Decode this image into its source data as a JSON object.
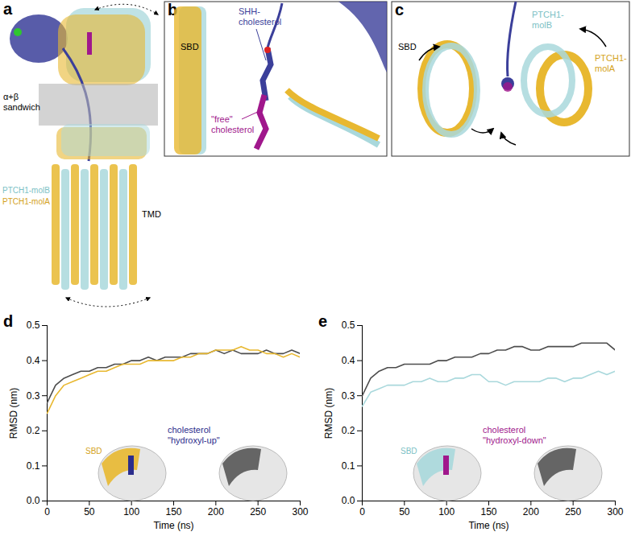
{
  "panels": [
    {
      "letter": "a",
      "sandwich_label": [
        "α+β",
        "sandwich"
      ],
      "tmd_label": "TMD",
      "molB_label": "PTCH1-molB",
      "molA_label": "PTCH1-molA",
      "molA_color": "#e8b830",
      "molB_color": "#a9d8dc",
      "shh_color": "#3b3f9a"
    },
    {
      "letter": "b",
      "shh_label": [
        "SHH-",
        "cholesterol"
      ],
      "sbd_label": "SBD",
      "free_label": [
        "\"free\"",
        "cholesterol"
      ],
      "free_color": "#a0178c"
    },
    {
      "letter": "c",
      "sbd_label": "SBD",
      "molB_label": [
        "PTCH1-",
        "molB"
      ],
      "molA_label": [
        "PTCH1-",
        "molA"
      ]
    }
  ],
  "chart_data": [
    {
      "letter": "d",
      "type": "line",
      "xlabel": "Time (ns)",
      "ylabel": "RMSD (nm)",
      "x": [
        0,
        10,
        20,
        30,
        40,
        50,
        60,
        70,
        80,
        90,
        100,
        110,
        120,
        130,
        140,
        150,
        160,
        170,
        180,
        190,
        200,
        210,
        220,
        230,
        240,
        250,
        260,
        270,
        280,
        290,
        300
      ],
      "series": [
        {
          "color": "#4d4d4d",
          "values": [
            0.28,
            0.33,
            0.35,
            0.36,
            0.37,
            0.37,
            0.38,
            0.38,
            0.39,
            0.39,
            0.4,
            0.4,
            0.41,
            0.4,
            0.41,
            0.41,
            0.41,
            0.42,
            0.42,
            0.42,
            0.43,
            0.42,
            0.43,
            0.42,
            0.42,
            0.42,
            0.43,
            0.42,
            0.42,
            0.43,
            0.42
          ]
        },
        {
          "color": "#e8b830",
          "values": [
            0.25,
            0.3,
            0.33,
            0.34,
            0.35,
            0.36,
            0.37,
            0.37,
            0.38,
            0.39,
            0.39,
            0.39,
            0.4,
            0.4,
            0.4,
            0.4,
            0.41,
            0.41,
            0.42,
            0.42,
            0.43,
            0.43,
            0.43,
            0.44,
            0.43,
            0.43,
            0.42,
            0.42,
            0.41,
            0.42,
            0.41
          ]
        }
      ],
      "xlim": [
        0,
        300
      ],
      "ylim": [
        0,
        0.5
      ],
      "xticks": [
        0,
        50,
        100,
        150,
        200,
        250,
        300
      ],
      "yticks": [
        {
          "value": 0,
          "label": "0.0"
        },
        {
          "value": 0.1,
          "label": "0.1"
        },
        {
          "value": 0.2,
          "label": "0.2"
        },
        {
          "value": 0.3,
          "label": "0.3"
        },
        {
          "value": 0.4,
          "label": "0.4"
        },
        {
          "value": 0.5,
          "label": "0.5"
        }
      ],
      "inset": {
        "sbd_label": "SBD",
        "sbd_color": "#e8b830",
        "ligand_label": [
          "cholesterol",
          "\"hydroxyl-up\""
        ],
        "ligand_color": "#2b2d8c"
      }
    },
    {
      "letter": "e",
      "type": "line",
      "xlabel": "Time (ns)",
      "ylabel": "RMSD (nm)",
      "x": [
        0,
        10,
        20,
        30,
        40,
        50,
        60,
        70,
        80,
        90,
        100,
        110,
        120,
        130,
        140,
        150,
        160,
        170,
        180,
        190,
        200,
        210,
        220,
        230,
        240,
        250,
        260,
        270,
        280,
        290,
        300
      ],
      "series": [
        {
          "color": "#4d4d4d",
          "values": [
            0.3,
            0.35,
            0.37,
            0.38,
            0.38,
            0.39,
            0.39,
            0.39,
            0.39,
            0.4,
            0.4,
            0.41,
            0.41,
            0.41,
            0.42,
            0.42,
            0.43,
            0.43,
            0.44,
            0.44,
            0.43,
            0.43,
            0.44,
            0.44,
            0.44,
            0.44,
            0.45,
            0.45,
            0.45,
            0.45,
            0.43
          ]
        },
        {
          "color": "#a9d8dc",
          "values": [
            0.27,
            0.31,
            0.32,
            0.33,
            0.33,
            0.33,
            0.34,
            0.34,
            0.35,
            0.34,
            0.34,
            0.35,
            0.35,
            0.36,
            0.36,
            0.34,
            0.34,
            0.33,
            0.34,
            0.34,
            0.34,
            0.34,
            0.35,
            0.35,
            0.34,
            0.35,
            0.35,
            0.36,
            0.37,
            0.36,
            0.37
          ]
        }
      ],
      "xlim": [
        0,
        300
      ],
      "ylim": [
        0,
        0.5
      ],
      "xticks": [
        0,
        50,
        100,
        150,
        200,
        250,
        300
      ],
      "yticks": [
        {
          "value": 0,
          "label": "0.0"
        },
        {
          "value": 0.1,
          "label": "0.1"
        },
        {
          "value": 0.2,
          "label": "0.2"
        },
        {
          "value": 0.3,
          "label": "0.3"
        },
        {
          "value": 0.4,
          "label": "0.4"
        },
        {
          "value": 0.5,
          "label": "0.5"
        }
      ],
      "inset": {
        "sbd_label": "SBD",
        "sbd_color": "#a9d8dc",
        "ligand_label": [
          "cholesterol",
          "\"hydroxyl-down\""
        ],
        "ligand_color": "#a0178c"
      }
    }
  ]
}
